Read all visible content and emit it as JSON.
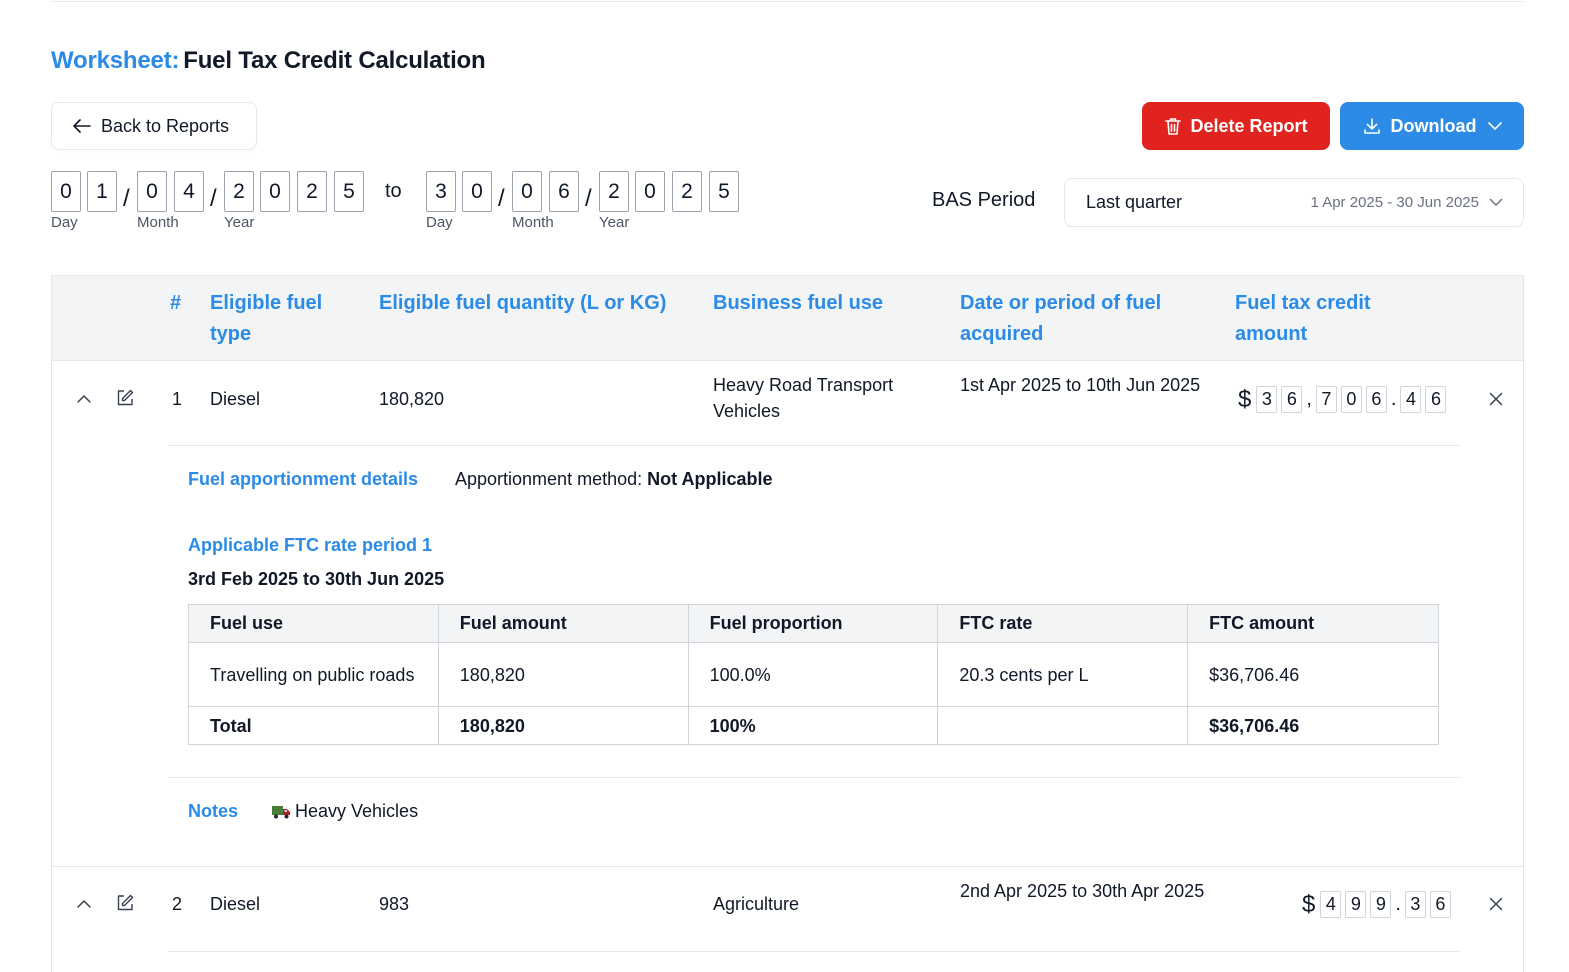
{
  "header": {
    "title_prefix": "Worksheet:",
    "title": "Fuel Tax Credit Calculation"
  },
  "toolbar": {
    "back_label": "Back to Reports",
    "delete_label": "Delete Report",
    "download_label": "Download"
  },
  "date_range": {
    "from": {
      "day": [
        "0",
        "1"
      ],
      "month": [
        "0",
        "4"
      ],
      "year": [
        "2",
        "0",
        "2",
        "5"
      ]
    },
    "to": {
      "day": [
        "3",
        "0"
      ],
      "month": [
        "0",
        "6"
      ],
      "year": [
        "2",
        "0",
        "2",
        "5"
      ]
    },
    "separator": "to",
    "slash": "/",
    "labels": {
      "day": "Day",
      "month": "Month",
      "year": "Year"
    }
  },
  "bas": {
    "label": "BAS Period",
    "selected": "Last quarter",
    "range": "1 Apr 2025 - 30 Jun 2025"
  },
  "table": {
    "headers": {
      "num": "#",
      "fuel_type": "Eligible fuel type",
      "quantity": "Eligible fuel quantity (L or KG)",
      "business_use": "Business fuel use",
      "period": "Date or period of fuel acquired",
      "credit": "Fuel tax credit amount"
    },
    "rows": [
      {
        "num": "1",
        "fuel_type": "Diesel",
        "quantity": "180,820",
        "business_use": "Heavy Road Transport Vehicles",
        "period": "1st Apr 2025 to 10th Jun 2025",
        "currency": "$",
        "amount_chars": [
          "3",
          "6",
          ",",
          "7",
          "0",
          "6",
          ".",
          "4",
          "6"
        ]
      },
      {
        "num": "2",
        "fuel_type": "Diesel",
        "quantity": "983",
        "business_use": "Agriculture",
        "period": "2nd Apr 2025 to 30th Apr 2025",
        "currency": "$",
        "amount_chars": [
          "4",
          "9",
          "9",
          ".",
          "3",
          "6"
        ]
      }
    ]
  },
  "details": {
    "apportionment_title": "Fuel apportionment details",
    "apportionment_label": "Apportionment method:",
    "apportionment_value": "Not Applicable",
    "rate_title": "Applicable FTC rate period 1",
    "rate_period": "3rd Feb 2025 to 30th Jun 2025",
    "inner_table": {
      "headers": [
        "Fuel use",
        "Fuel amount",
        "Fuel proportion",
        "FTC rate",
        "FTC amount"
      ],
      "rows": [
        [
          "Travelling on public roads",
          "180,820",
          "100.0%",
          "20.3 cents per L",
          "$36,706.46"
        ]
      ],
      "total": [
        "Total",
        "180,820",
        "100%",
        "",
        "$36,706.46"
      ]
    },
    "notes_label": "Notes",
    "notes_value": "Heavy Vehicles"
  }
}
